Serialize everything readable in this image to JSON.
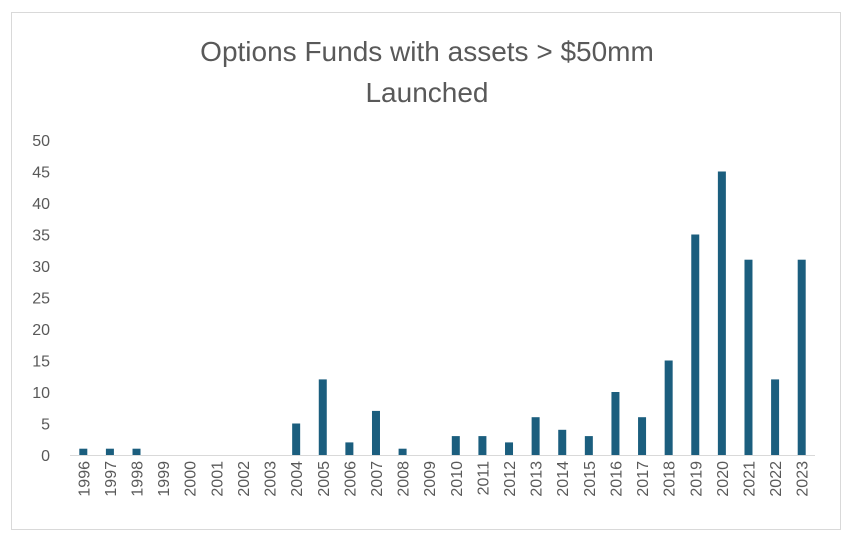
{
  "chart_data": {
    "type": "bar",
    "title_lines": [
      "Options Funds with assets > $50mm",
      "Launched"
    ],
    "xlabel": "",
    "ylabel": "",
    "categories": [
      "1996",
      "1997",
      "1998",
      "1999",
      "2000",
      "2001",
      "2002",
      "2003",
      "2004",
      "2005",
      "2006",
      "2007",
      "2008",
      "2009",
      "2010",
      "2011",
      "2012",
      "2013",
      "2014",
      "2015",
      "2016",
      "2017",
      "2018",
      "2019",
      "2020",
      "2021",
      "2022",
      "2023"
    ],
    "values": [
      1,
      1,
      1,
      0,
      0,
      0,
      0,
      0,
      5,
      12,
      2,
      7,
      1,
      0,
      3,
      3,
      2,
      6,
      4,
      3,
      10,
      6,
      15,
      35,
      45,
      31,
      12,
      31
    ],
    "ylim": [
      0,
      50
    ],
    "yticks": [
      0,
      5,
      10,
      15,
      20,
      25,
      30,
      35,
      40,
      45,
      50
    ],
    "bar_color": "#1b5e7e",
    "grid": false,
    "legend": "none"
  }
}
